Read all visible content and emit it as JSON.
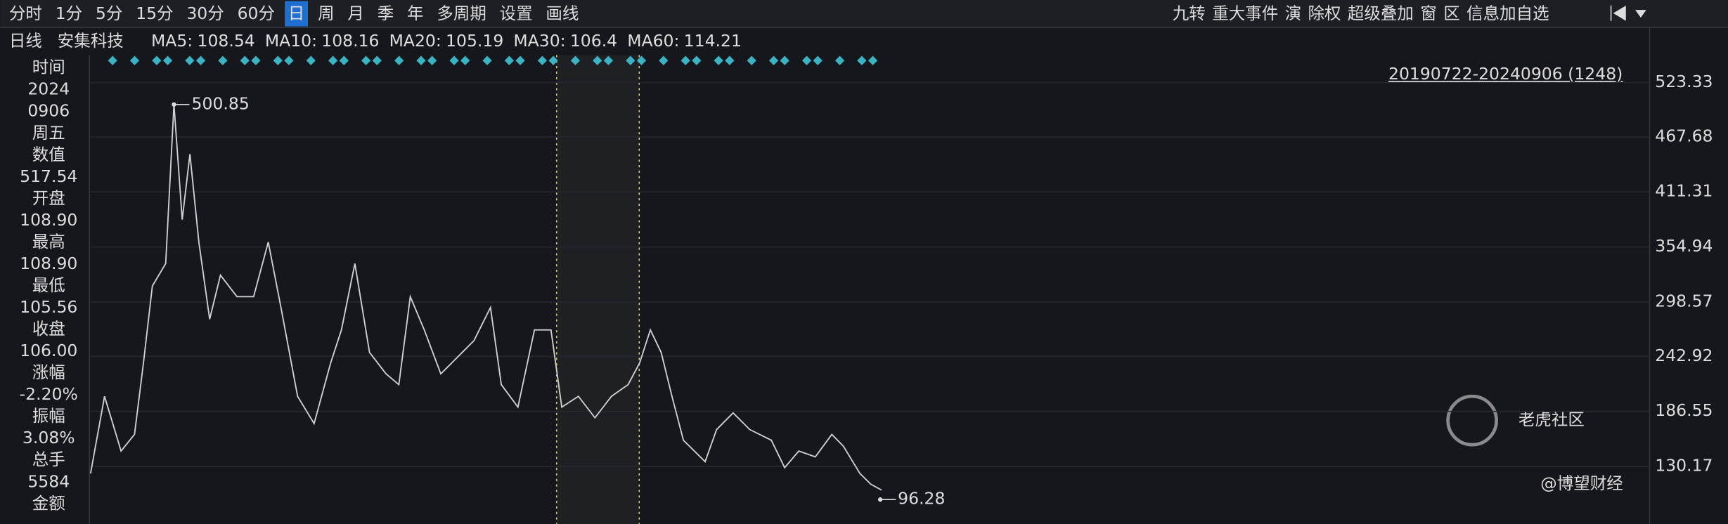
{
  "toolbar": {
    "left": [
      "分时",
      "1分",
      "5分",
      "15分",
      "30分",
      "60分",
      "日",
      "周",
      "月",
      "季",
      "年",
      "多周期",
      "设置",
      "画线"
    ],
    "active": 6,
    "right": [
      "九转",
      "重大事件",
      "演",
      "除权",
      "超级叠加",
      "窗",
      "区",
      "信息加自选"
    ]
  },
  "legend": {
    "period": "日线",
    "name": "安集科技",
    "ma": [
      {
        "label": "MA5:",
        "value": 108.54,
        "color": "#e8e8e8"
      },
      {
        "label": "MA10:",
        "value": 108.16,
        "color": "#e6d26a"
      },
      {
        "label": "MA20:",
        "value": 105.19,
        "color": "#e0408a"
      },
      {
        "label": "MA30:",
        "value": 106.4,
        "color": "#39c04a"
      },
      {
        "label": "MA60:",
        "value": 114.21,
        "color": "#e8e8e8"
      }
    ]
  },
  "info_panel": {
    "rows": [
      {
        "label": "时间",
        "lines": [
          "2024",
          "0906",
          "周五"
        ]
      },
      {
        "label": "数值",
        "value": "517.54",
        "color": "#f03a4e"
      },
      {
        "label": "开盘",
        "value": "108.90",
        "color": "#f03a4e"
      },
      {
        "label": "最高",
        "value": "108.90",
        "color": "#f03a4e"
      },
      {
        "label": "最低",
        "value": "105.56",
        "color": "#2fd16a"
      },
      {
        "label": "收盘",
        "value": "106.00",
        "color": "#2fd16a"
      },
      {
        "label": "涨幅",
        "value": "-2.20%",
        "color": "#2fd16a"
      },
      {
        "label": "振幅",
        "value": "3.08%",
        "color": "#dddddd"
      },
      {
        "label": "总手",
        "value": "5584",
        "color": "#dddddd"
      },
      {
        "label": "金额"
      }
    ]
  },
  "range_label": "20190722-20240906 (1248)",
  "watermark": {
    "brand": "老虎社区",
    "author": "@博望财经"
  },
  "chart_data": {
    "type": "line",
    "x": [
      0,
      22,
      48,
      69,
      83,
      97,
      118,
      131,
      144,
      156,
      170,
      187,
      204,
      230,
      256,
      279,
      299,
      325,
      351,
      377,
      394,
      415,
      438,
      464,
      484,
      502,
      524,
      550,
      567,
      602,
      628,
      645,
      671,
      697,
      723,
      740,
      766,
      792,
      818,
      844,
      862,
      879,
      896,
      913,
      931,
      965,
      983,
      1009,
      1035,
      1069,
      1090,
      1112,
      1138,
      1164,
      1182,
      1208,
      1225,
      1242
    ],
    "values": [
      123,
      202,
      146,
      163,
      236,
      315,
      338,
      501,
      383,
      450,
      360,
      281,
      326,
      304,
      304,
      360,
      293,
      202,
      174,
      236,
      270,
      338,
      247,
      225,
      214,
      304,
      270,
      225,
      236,
      259,
      293,
      214,
      191,
      270,
      270,
      191,
      202,
      180,
      202,
      214,
      236,
      270,
      247,
      202,
      157,
      135,
      168,
      185,
      168,
      157,
      129,
      146,
      140,
      163,
      151,
      123,
      112,
      106
    ],
    "color": "#cfcfcf",
    "xlim": [
      0,
      2448
    ],
    "ylim": [
      78,
      556
    ],
    "yticks": [
      130.17,
      186.55,
      242.92,
      298.57,
      354.94,
      411.31,
      467.68,
      523.33
    ],
    "tick_color": "#e0304a",
    "grid": true,
    "annotations": [
      {
        "x": 131,
        "value": 500.85
      },
      {
        "x": 1240,
        "value": 96.28
      }
    ]
  }
}
